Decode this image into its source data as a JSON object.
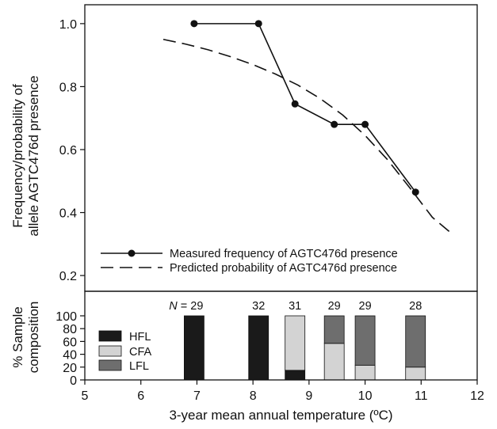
{
  "chart_data": [
    {
      "type": "line",
      "ylabel_line1": "Frequency/probability of",
      "ylabel_line2": "allele AGTC476d presence",
      "xlim": [
        5,
        12
      ],
      "ylim": [
        0.15,
        1.06
      ],
      "yticks": [
        "0.2",
        "0.4",
        "0.6",
        "0.8",
        "1.0"
      ],
      "ytick_values": [
        0.2,
        0.4,
        0.6,
        0.8,
        1.0
      ],
      "legend_position": "bottom-left",
      "series": [
        {
          "name": "Measured frequency of AGTC476d presence",
          "style": "solid-markers",
          "x": [
            6.95,
            8.1,
            8.75,
            9.45,
            10.0,
            10.9
          ],
          "y": [
            1.0,
            1.0,
            0.745,
            0.68,
            0.68,
            0.465
          ]
        },
        {
          "name": "Predicted probability of AGTC476d presence",
          "style": "dashed",
          "x": [
            6.4,
            6.8,
            7.2,
            7.6,
            8.0,
            8.4,
            8.8,
            9.2,
            9.6,
            10.0,
            10.4,
            10.8,
            11.2,
            11.5
          ],
          "y": [
            0.95,
            0.935,
            0.917,
            0.895,
            0.87,
            0.84,
            0.805,
            0.762,
            0.71,
            0.645,
            0.568,
            0.478,
            0.385,
            0.34
          ]
        }
      ]
    },
    {
      "type": "bar",
      "stacked": true,
      "ylabel_line1": "% Sample",
      "ylabel_line2": "composition",
      "xlabel": "3-year mean annual temperature (ºC)",
      "xlim": [
        5,
        12
      ],
      "ylim": [
        0,
        100
      ],
      "xticks": [
        "5",
        "6",
        "7",
        "8",
        "9",
        "10",
        "11",
        "12"
      ],
      "xtick_values": [
        5,
        6,
        7,
        8,
        9,
        10,
        11,
        12
      ],
      "yticks": [
        "0",
        "20",
        "40",
        "60",
        "80",
        "100"
      ],
      "ytick_values": [
        0,
        20,
        40,
        60,
        80,
        100
      ],
      "legend_position": "top-left",
      "n_prefix": "N",
      "n_equals": " = ",
      "x": [
        6.95,
        8.1,
        8.75,
        9.45,
        10.0,
        10.9
      ],
      "n": [
        "29",
        "32",
        "31",
        "29",
        "29",
        "28"
      ],
      "series": [
        {
          "name": "HFL",
          "color": "#1a1a1a",
          "values": [
            100,
            100,
            15,
            0,
            0,
            0
          ]
        },
        {
          "name": "CFA",
          "color": "#d3d3d3",
          "values": [
            0,
            0,
            85,
            57,
            23,
            20
          ]
        },
        {
          "name": "LFL",
          "color": "#6e6e6e",
          "values": [
            0,
            0,
            0,
            43,
            77,
            80
          ]
        }
      ]
    }
  ]
}
